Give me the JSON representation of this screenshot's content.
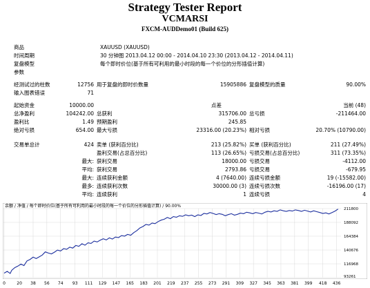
{
  "header": {
    "title": "Strategy Tester Report",
    "expert": "VCMARSI",
    "server": "FXCM-AUDDemo01 (Build 625)"
  },
  "settings": [
    {
      "label": "商品",
      "value": "XAUUSD (XAUUSD)"
    },
    {
      "label": "时间周期",
      "value": "30 分钟图 2013.04.12 00:00 - 2014.04.10 23:30 (2013.04.12 - 2014.04.11)"
    },
    {
      "label": "复盘模型",
      "value": "每个即时价位(基于所有可利用的最小时段的每一个价位的分形插值计算)"
    },
    {
      "label": "参数",
      "value": ""
    }
  ],
  "bars": {
    "bars_label": "经测试过的柱数",
    "bars_value": "12756",
    "ticks_label": "用于复盘的即时价数量",
    "ticks_value": "15905886",
    "quality_label": "复盘模型的质量",
    "quality_value": "90.00%",
    "mismatch_label": "输入图表错误",
    "mismatch_value": "71"
  },
  "capital": {
    "deposit_label": "起始资金",
    "deposit_value": "10000.00",
    "spread_label": "点差",
    "spread_value": "当前 (48)",
    "net_label": "总净盈利",
    "net_value": "104242.00",
    "gross_profit_label": "总获利",
    "gross_profit_value": "315706.00",
    "gross_loss_label": "总亏损",
    "gross_loss_value": "-211464.00",
    "pf_label": "盈利比",
    "pf_value": "1.49",
    "expected_label": "预期盈利",
    "expected_value": "245.85",
    "abs_dd_label": "绝对亏损",
    "abs_dd_value": "654.00",
    "max_dd_label": "最大亏损",
    "max_dd_value": "23316.00 (20.23%)",
    "rel_dd_label": "相对亏损",
    "rel_dd_value": "20.70% (10790.00)"
  },
  "trades": {
    "total_label": "交易单总计",
    "total_value": "424",
    "short_label": "卖单 (获利百分比)",
    "short_value": "213 (25.82%)",
    "long_label": "买单 (获利百分比)",
    "long_value": "211 (27.49%)",
    "win_label": "盈利交易(占总百分比)",
    "win_value": "113 (26.65%)",
    "loss_label": "亏损交易(占总百分比)",
    "loss_value": "311 (73.35%)",
    "max_label": "最大:",
    "largest_win_label": "获利交易",
    "largest_win_value": "18000.00",
    "largest_loss_label": "亏损交易",
    "largest_loss_value": "-4112.00",
    "avg_label": "平均:",
    "avg_win_label": "获利交易",
    "avg_win_value": "2793.86",
    "avg_loss_label": "亏损交易",
    "avg_loss_value": "-679.95",
    "max2_label": "最大:",
    "cons_wins_label": "连续获利金额",
    "cons_wins_value": "4 (7640.00)",
    "cons_losses_label": "连续亏损金额",
    "cons_losses_value": "19 (-15582.00)",
    "most_label": "最多:",
    "cons_profit_label": "连续获利次数",
    "cons_profit_value": "30000.00 (3)",
    "cons_loss_label": "连续亏损次数",
    "cons_loss_value": "-16196.00 (17)",
    "avg2_label": "平均:",
    "avg_cons_win_label": "连续获利",
    "avg_cons_win_value": "1",
    "avg_cons_loss_label": "连续亏损",
    "avg_cons_loss_value": "4"
  },
  "chart_data": {
    "type": "line",
    "legend": "余额 / 净值 / 每个即时价位(基于所有可利用的最小时段的每一个价位的分形插值计算) / 90.00%",
    "x_ticks": [
      "0",
      "20",
      "38",
      "56",
      "74",
      "93",
      "111",
      "129",
      "147",
      "165",
      "183",
      "201",
      "219",
      "237",
      "255",
      "273",
      "291",
      "309",
      "327",
      "345",
      "363",
      "381",
      "399",
      "418",
      "436"
    ],
    "y_ticks": [
      "211800",
      "188092",
      "164384",
      "140676",
      "116968",
      "93261"
    ],
    "ylim": [
      93261,
      211800
    ],
    "xlim": [
      0,
      440
    ],
    "series": [
      {
        "x": [
          0,
          4,
          8,
          10,
          14,
          18,
          22,
          26,
          30,
          34,
          38,
          42,
          46,
          50,
          54,
          58,
          62,
          66,
          70,
          74,
          78,
          82,
          86,
          90,
          94,
          98,
          102,
          106,
          110,
          114,
          118,
          122,
          126,
          130,
          134,
          138,
          142,
          146,
          150,
          154,
          158,
          162,
          166,
          170,
          174,
          178,
          182,
          186,
          190,
          194,
          198,
          202,
          206,
          210,
          214,
          218,
          222,
          226,
          230,
          234,
          238,
          242,
          246,
          250,
          254,
          258,
          262,
          266,
          270,
          274,
          278,
          282,
          286,
          290,
          294,
          298,
          302,
          306,
          310,
          314,
          318,
          322,
          326,
          330,
          334,
          338,
          342,
          346,
          350,
          354,
          358,
          362,
          366,
          370,
          374,
          378,
          382,
          386,
          390,
          394,
          398,
          402,
          406,
          410,
          414,
          418,
          422,
          426,
          430,
          434,
          438
        ],
        "values": [
          101000,
          104000,
          100500,
          106000,
          110500,
          113000,
          116500,
          114000,
          122000,
          124500,
          128500,
          126000,
          129000,
          132000,
          137500,
          135500,
          134000,
          137000,
          140500,
          139000,
          143000,
          142000,
          145500,
          144000,
          148500,
          147000,
          151500,
          149000,
          153000,
          152000,
          156000,
          154500,
          157500,
          160000,
          158000,
          161500,
          159500,
          163000,
          162000,
          165500,
          164500,
          167500,
          166000,
          170500,
          174000,
          178500,
          181000,
          184500,
          183500,
          187000,
          186000,
          189500,
          192000,
          193500,
          196500,
          194500,
          198000,
          197000,
          199500,
          198500,
          201000,
          199500,
          200500,
          198000,
          201000,
          200000,
          203500,
          202500,
          205000,
          203500,
          201500,
          203000,
          202000,
          199500,
          201500,
          203000,
          200500,
          202000,
          204000,
          203000,
          205500,
          204500,
          203000,
          205000,
          204000,
          202500,
          205500,
          207000,
          206000,
          208000,
          207000,
          209500,
          208000,
          207000,
          208500,
          207500,
          209500,
          208500,
          207000,
          209000,
          207500,
          206000,
          208000,
          206500,
          205000,
          203500,
          204500,
          202500,
          205000,
          207500,
          211000
        ]
      }
    ]
  },
  "colors": {
    "line": "#1c2f9e",
    "grid": "#d0d0d0",
    "legend": "#000000"
  }
}
